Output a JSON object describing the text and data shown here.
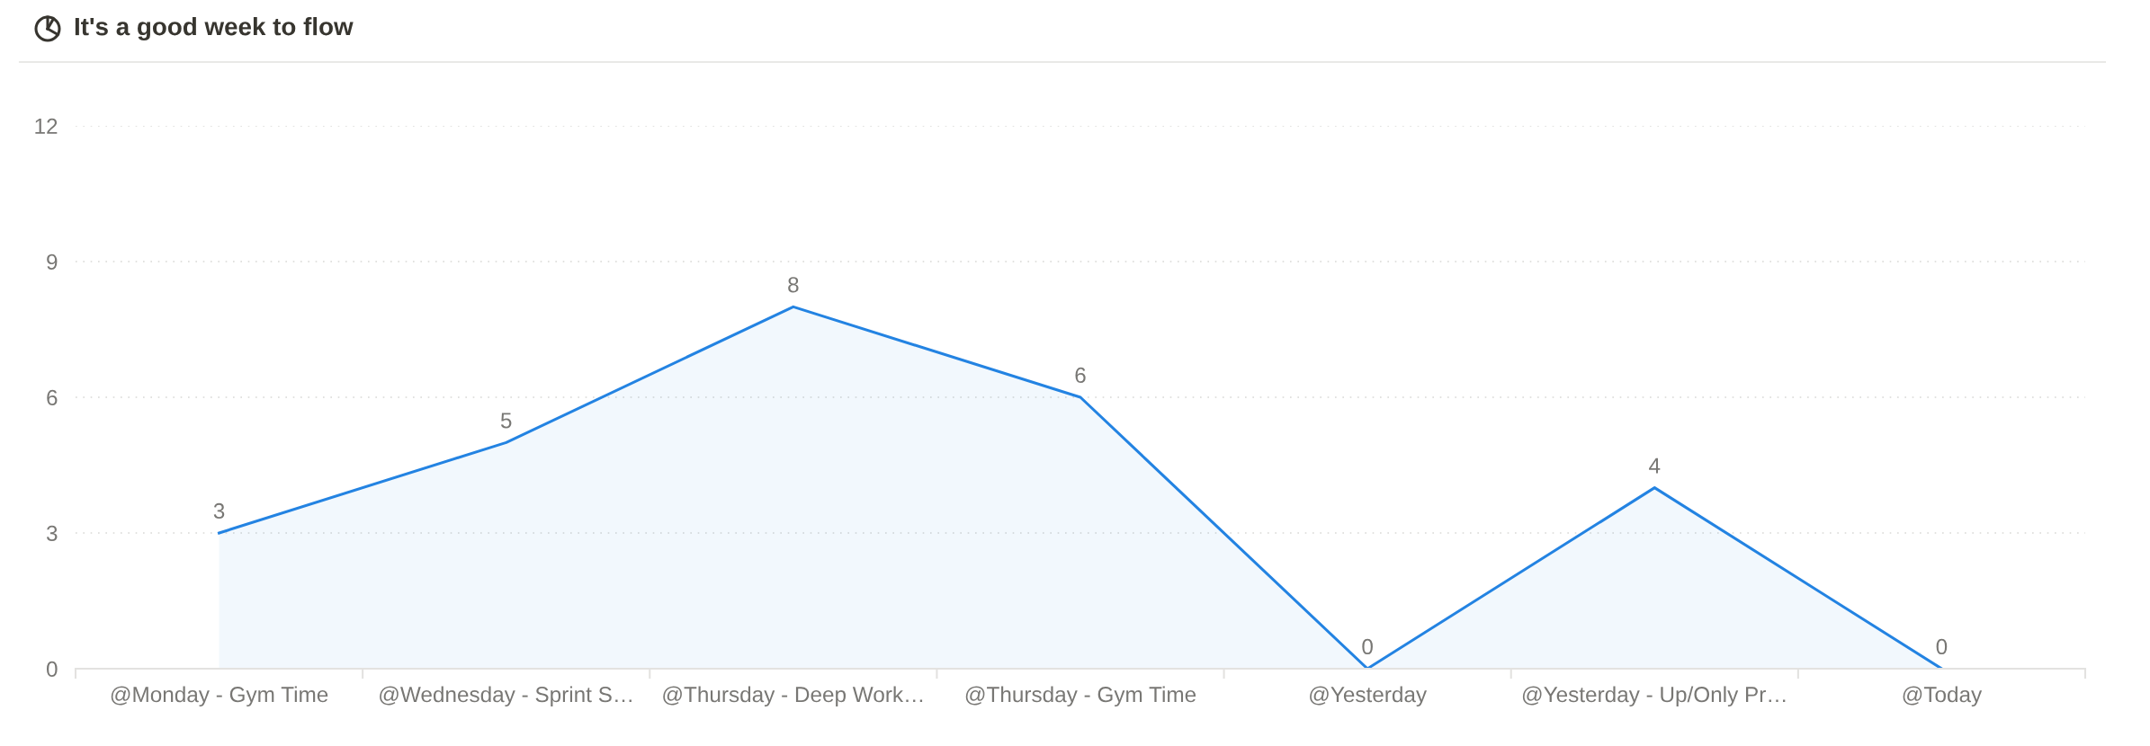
{
  "chart_data": {
    "type": "area",
    "title": "It's a good week to flow",
    "categories": [
      "@Monday - Gym Time",
      "@Wednesday - Sprint S…",
      "@Thursday - Deep Work…",
      "@Thursday - Gym Time",
      "@Yesterday",
      "@Yesterday - Up/Only Pr…",
      "@Today"
    ],
    "values": [
      3,
      5,
      8,
      6,
      0,
      4,
      0
    ],
    "color": "#2383e2",
    "ylim": [
      0,
      12
    ],
    "yticks": [
      0,
      3,
      6,
      9,
      12
    ],
    "grid": "y",
    "data_labels": true
  }
}
